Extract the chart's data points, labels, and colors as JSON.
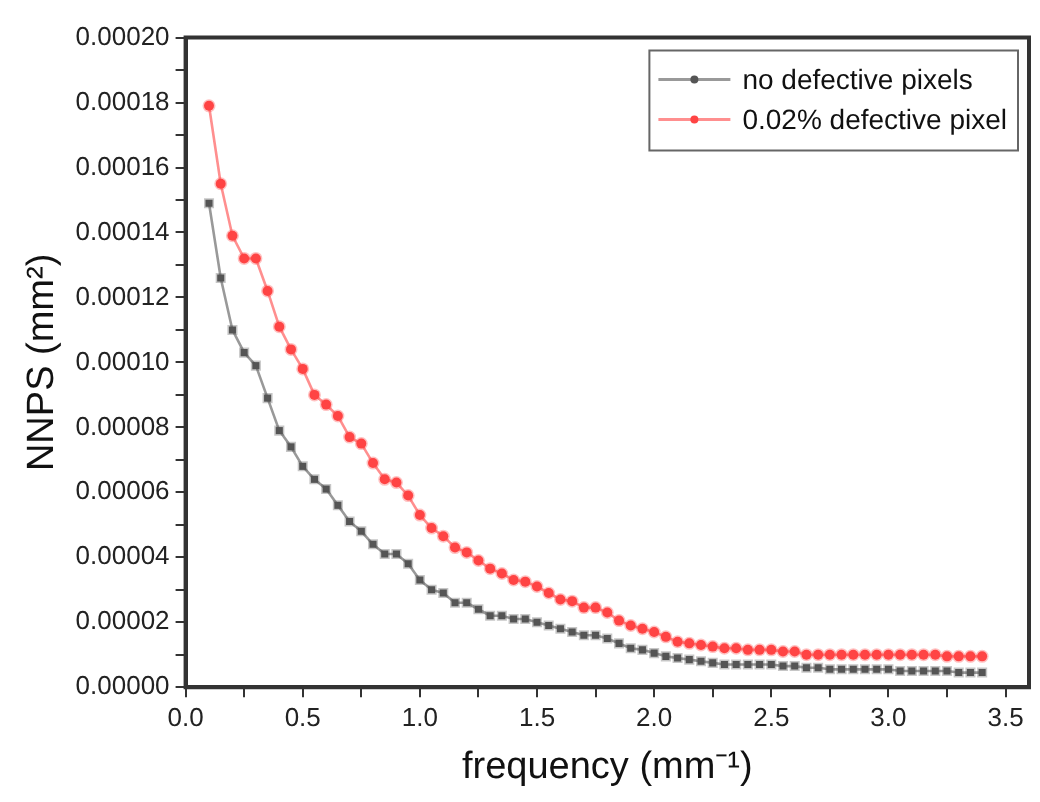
{
  "chart_data": {
    "type": "line",
    "xlabel": "frequency (mm⁻¹)",
    "ylabel": "NNPS (mm²)",
    "x": [
      0.1,
      0.15,
      0.2,
      0.25,
      0.3,
      0.35,
      0.4,
      0.45,
      0.5,
      0.55,
      0.6,
      0.65,
      0.7,
      0.75,
      0.8,
      0.85,
      0.9,
      0.95,
      1.0,
      1.05,
      1.1,
      1.15,
      1.2,
      1.25,
      1.3,
      1.35,
      1.4,
      1.45,
      1.5,
      1.55,
      1.6,
      1.65,
      1.7,
      1.75,
      1.8,
      1.85,
      1.9,
      1.95,
      2.0,
      2.05,
      2.1,
      2.15,
      2.2,
      2.25,
      2.3,
      2.35,
      2.4,
      2.45,
      2.5,
      2.55,
      2.6,
      2.65,
      2.7,
      2.75,
      2.8,
      2.85,
      2.9,
      2.95,
      3.0,
      3.05,
      3.1,
      3.15,
      3.2,
      3.25,
      3.3,
      3.35,
      3.4
    ],
    "series": [
      {
        "name": "no defective pixels",
        "color": "#555555",
        "marker": "square",
        "values": [
          0.000149,
          0.000126,
          0.00011,
          0.000103,
          9.9e-05,
          8.9e-05,
          7.9e-05,
          7.4e-05,
          6.8e-05,
          6.4e-05,
          6.1e-05,
          5.6e-05,
          5.1e-05,
          4.8e-05,
          4.4e-05,
          4.1e-05,
          4.1e-05,
          3.8e-05,
          3.3e-05,
          3e-05,
          2.9e-05,
          2.6e-05,
          2.6e-05,
          2.4e-05,
          2.2e-05,
          2.2e-05,
          2.1e-05,
          2.1e-05,
          2e-05,
          1.9e-05,
          1.8e-05,
          1.7e-05,
          1.6e-05,
          1.6e-05,
          1.5e-05,
          1.35e-05,
          1.2e-05,
          1.15e-05,
          1.05e-05,
          9.5e-06,
          9e-06,
          8.5e-06,
          8e-06,
          7.5e-06,
          7e-06,
          7e-06,
          7e-06,
          7e-06,
          7e-06,
          6.5e-06,
          6.5e-06,
          6e-06,
          6e-06,
          5.5e-06,
          5.5e-06,
          5.5e-06,
          5.5e-06,
          5.5e-06,
          5.5e-06,
          5e-06,
          5e-06,
          5e-06,
          5e-06,
          5e-06,
          4.5e-06,
          4.5e-06,
          4.5e-06
        ]
      },
      {
        "name": "0.02% defective pixel",
        "color": "#ff4444",
        "marker": "circle",
        "values": [
          0.000179,
          0.000155,
          0.000139,
          0.000132,
          0.000132,
          0.000122,
          0.000111,
          0.000104,
          9.8e-05,
          9e-05,
          8.7e-05,
          8.35e-05,
          7.7e-05,
          7.5e-05,
          6.9e-05,
          6.4e-05,
          6.3e-05,
          5.9e-05,
          5.3e-05,
          4.9e-05,
          4.65e-05,
          4.3e-05,
          4.15e-05,
          3.9e-05,
          3.65e-05,
          3.5e-05,
          3.3e-05,
          3.25e-05,
          3.1e-05,
          2.9e-05,
          2.7e-05,
          2.65e-05,
          2.45e-05,
          2.45e-05,
          2.3e-05,
          2.05e-05,
          1.9e-05,
          1.8e-05,
          1.7e-05,
          1.55e-05,
          1.4e-05,
          1.35e-05,
          1.3e-05,
          1.25e-05,
          1.2e-05,
          1.2e-05,
          1.15e-05,
          1.15e-05,
          1.15e-05,
          1.1e-05,
          1.1e-05,
          1e-05,
          1e-05,
          1e-05,
          1e-05,
          1e-05,
          1e-05,
          1e-05,
          1e-05,
          1e-05,
          1e-05,
          1e-05,
          1e-05,
          9.5e-06,
          9.5e-06,
          9.5e-06,
          9.5e-06
        ]
      }
    ],
    "xlim": [
      0,
      3.6
    ],
    "xticks": [
      {
        "value": 0,
        "label": "0.0"
      },
      {
        "value": 0.25,
        "label": null
      },
      {
        "value": 0.5,
        "label": "0.5"
      },
      {
        "value": 0.75,
        "label": null
      },
      {
        "value": 1,
        "label": "1.0"
      },
      {
        "value": 1.25,
        "label": null
      },
      {
        "value": 1.5,
        "label": "1.5"
      },
      {
        "value": 1.75,
        "label": null
      },
      {
        "value": 2,
        "label": "2.0"
      },
      {
        "value": 2.25,
        "label": null
      },
      {
        "value": 2.5,
        "label": "2.5"
      },
      {
        "value": 2.75,
        "label": null
      },
      {
        "value": 3,
        "label": "3.0"
      },
      {
        "value": 3.25,
        "label": null
      },
      {
        "value": 3.5,
        "label": "3.5"
      }
    ],
    "ylim": [
      0,
      0.0002
    ],
    "yticks": [
      {
        "value": 0,
        "label": "0.00000"
      },
      {
        "value": 1e-05,
        "label": null
      },
      {
        "value": 2e-05,
        "label": "0.00002"
      },
      {
        "value": 3e-05,
        "label": null
      },
      {
        "value": 4e-05,
        "label": "0.00004"
      },
      {
        "value": 5e-05,
        "label": null
      },
      {
        "value": 6e-05,
        "label": "0.00006"
      },
      {
        "value": 7e-05,
        "label": null
      },
      {
        "value": 8e-05,
        "label": "0.00008"
      },
      {
        "value": 9e-05,
        "label": null
      },
      {
        "value": 0.0001,
        "label": "0.00010"
      },
      {
        "value": 0.00011,
        "label": null
      },
      {
        "value": 0.00012,
        "label": "0.00012"
      },
      {
        "value": 0.00013,
        "label": null
      },
      {
        "value": 0.00014,
        "label": "0.00014"
      },
      {
        "value": 0.00015,
        "label": null
      },
      {
        "value": 0.00016,
        "label": "0.00016"
      },
      {
        "value": 0.00017,
        "label": null
      },
      {
        "value": 0.00018,
        "label": "0.00018"
      },
      {
        "value": 0.00019,
        "label": null
      },
      {
        "value": 0.0002,
        "label": "0.00020"
      }
    ],
    "grid": false,
    "legend": "top right",
    "line_style": "solid"
  }
}
